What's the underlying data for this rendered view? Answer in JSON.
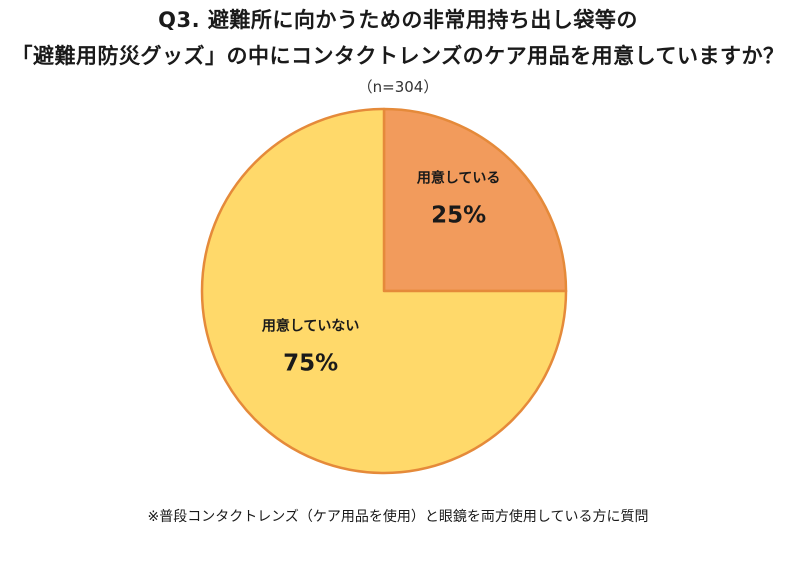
{
  "chart_data": {
    "type": "pie",
    "title_lines": [
      "Q3. 避難所に向かうための非常用持ち出し袋等の",
      "「避難用防災グッズ」の中にコンタクトレンズのケア用品を用意していますか？"
    ],
    "subtitle": "（n=304）",
    "slices": [
      {
        "label": "用意している",
        "value": 25,
        "value_label": "25%",
        "color": "#F29B5C"
      },
      {
        "label": "用意していない",
        "value": 75,
        "value_label": "75%",
        "color": "#FFD96A"
      }
    ],
    "stroke_color": "#E58A3A",
    "start_angle_deg": 0,
    "direction": "clockwise",
    "legend": "none"
  },
  "footnote": "※普段コンタクトレンズ（ケア用品を使用）と眼鏡を両方使用している方に質問"
}
